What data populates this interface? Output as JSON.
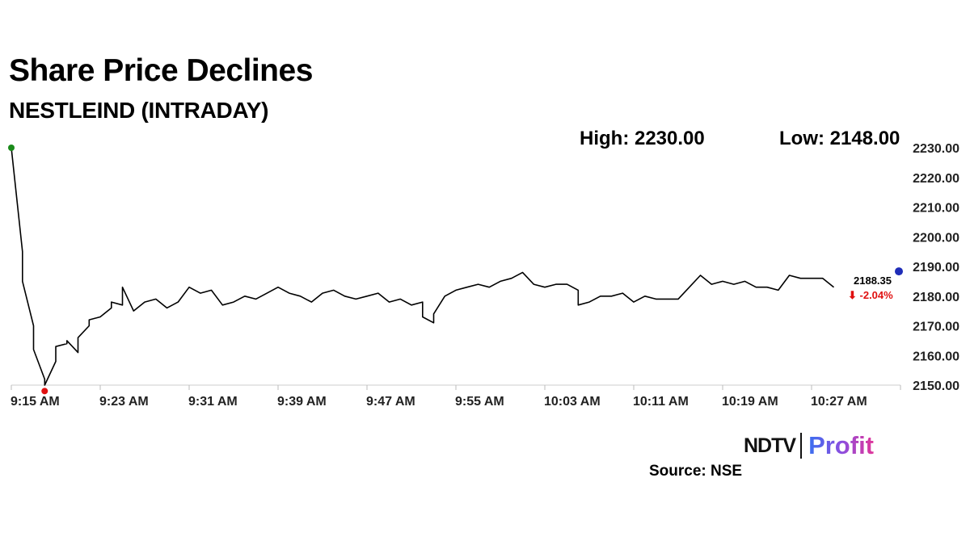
{
  "title": "Share Price Declines",
  "subtitle": "NESTLEIND (INTRADAY)",
  "stats": {
    "high_text": "High: 2230.00",
    "low_text": "Low: 2148.00"
  },
  "last_price_label": "2188.35",
  "change_label": "⬇ -2.04%",
  "source": "Source: NSE",
  "logo": {
    "left": "NDTV",
    "right": "Profit"
  },
  "colors": {
    "line": "#000000",
    "high_marker": "#1a8a1a",
    "low_marker": "#e01010",
    "last_marker": "#1f2db8",
    "negative": "#e01010"
  },
  "chart_data": {
    "type": "line",
    "title": "Share Price Declines",
    "subtitle": "NESTLEIND (INTRADAY)",
    "x_unit": "minute",
    "x_start": "9:15 AM",
    "xlim": [
      "9:15 AM",
      "10:35 AM"
    ],
    "ylim": [
      2150,
      2230
    ],
    "yticks": [
      "2230.00",
      "2220.00",
      "2210.00",
      "2200.00",
      "2190.00",
      "2180.00",
      "2170.00",
      "2160.00",
      "2150.00"
    ],
    "xticks": [
      "9:15 AM",
      "9:23 AM",
      "9:31 AM",
      "9:39 AM",
      "9:47 AM",
      "9:55 AM",
      "10:03 AM",
      "10:11 AM",
      "10:19 AM",
      "10:27 AM"
    ],
    "grid": false,
    "high": {
      "time": "9:15 AM",
      "value": 2230.0
    },
    "low": {
      "time": "9:18 AM",
      "value": 2148.0
    },
    "last": {
      "time": "10:29 AM",
      "value": 2188.35,
      "change_pct": -2.04
    },
    "series": [
      {
        "points": [
          [
            "9:15 AM",
            2230
          ],
          [
            "9:16 AM",
            2195
          ],
          [
            "9:16 AM",
            2185
          ],
          [
            "9:17 AM",
            2170
          ],
          [
            "9:17 AM",
            2162
          ],
          [
            "9:18 AM",
            2152
          ],
          [
            "9:18 AM",
            2150
          ],
          [
            "9:19 AM",
            2158
          ],
          [
            "9:19 AM",
            2163
          ],
          [
            "9:20 AM",
            2164
          ],
          [
            "9:20 AM",
            2165
          ],
          [
            "9:21 AM",
            2161
          ],
          [
            "9:21 AM",
            2166
          ],
          [
            "9:22 AM",
            2170
          ],
          [
            "9:22 AM",
            2172
          ],
          [
            "9:23 AM",
            2173
          ],
          [
            "9:24 AM",
            2176
          ],
          [
            "9:24 AM",
            2178
          ],
          [
            "9:25 AM",
            2177
          ],
          [
            "9:25 AM",
            2183
          ],
          [
            "9:26 AM",
            2175
          ],
          [
            "9:27 AM",
            2178
          ],
          [
            "9:28 AM",
            2179
          ],
          [
            "9:29 AM",
            2176
          ],
          [
            "9:30 AM",
            2178
          ],
          [
            "9:31 AM",
            2183
          ],
          [
            "9:32 AM",
            2181
          ],
          [
            "9:33 AM",
            2182
          ],
          [
            "9:34 AM",
            2177
          ],
          [
            "9:35 AM",
            2178
          ],
          [
            "9:36 AM",
            2180
          ],
          [
            "9:37 AM",
            2179
          ],
          [
            "9:38 AM",
            2181
          ],
          [
            "9:39 AM",
            2183
          ],
          [
            "9:40 AM",
            2181
          ],
          [
            "9:41 AM",
            2180
          ],
          [
            "9:42 AM",
            2178
          ],
          [
            "9:43 AM",
            2181
          ],
          [
            "9:44 AM",
            2182
          ],
          [
            "9:45 AM",
            2180
          ],
          [
            "9:46 AM",
            2179
          ],
          [
            "9:47 AM",
            2180
          ],
          [
            "9:48 AM",
            2181
          ],
          [
            "9:49 AM",
            2178
          ],
          [
            "9:50 AM",
            2179
          ],
          [
            "9:51 AM",
            2177
          ],
          [
            "9:52 AM",
            2178
          ],
          [
            "9:52 AM",
            2173
          ],
          [
            "9:53 AM",
            2171
          ],
          [
            "9:53 AM",
            2174
          ],
          [
            "9:54 AM",
            2180
          ],
          [
            "9:55 AM",
            2182
          ],
          [
            "9:56 AM",
            2183
          ],
          [
            "9:57 AM",
            2184
          ],
          [
            "9:58 AM",
            2183
          ],
          [
            "9:59 AM",
            2185
          ],
          [
            "10:00 AM",
            2186
          ],
          [
            "10:01 AM",
            2188
          ],
          [
            "10:02 AM",
            2184
          ],
          [
            "10:03 AM",
            2183
          ],
          [
            "10:04 AM",
            2184
          ],
          [
            "10:05 AM",
            2184
          ],
          [
            "10:06 AM",
            2182
          ],
          [
            "10:06 AM",
            2177
          ],
          [
            "10:07 AM",
            2178
          ],
          [
            "10:08 AM",
            2180
          ],
          [
            "10:09 AM",
            2180
          ],
          [
            "10:10 AM",
            2181
          ],
          [
            "10:11 AM",
            2178
          ],
          [
            "10:12 AM",
            2180
          ],
          [
            "10:13 AM",
            2179
          ],
          [
            "10:14 AM",
            2179
          ],
          [
            "10:15 AM",
            2179
          ],
          [
            "10:16 AM",
            2183
          ],
          [
            "10:17 AM",
            2187
          ],
          [
            "10:18 AM",
            2184
          ],
          [
            "10:19 AM",
            2185
          ],
          [
            "10:20 AM",
            2184
          ],
          [
            "10:21 AM",
            2185
          ],
          [
            "10:22 AM",
            2183
          ],
          [
            "10:23 AM",
            2183
          ],
          [
            "10:24 AM",
            2182
          ],
          [
            "10:25 AM",
            2187
          ],
          [
            "10:26 AM",
            2186
          ],
          [
            "10:27 AM",
            2186
          ],
          [
            "10:28 AM",
            2186
          ],
          [
            "10:29 AM",
            2183
          ]
        ]
      }
    ]
  }
}
